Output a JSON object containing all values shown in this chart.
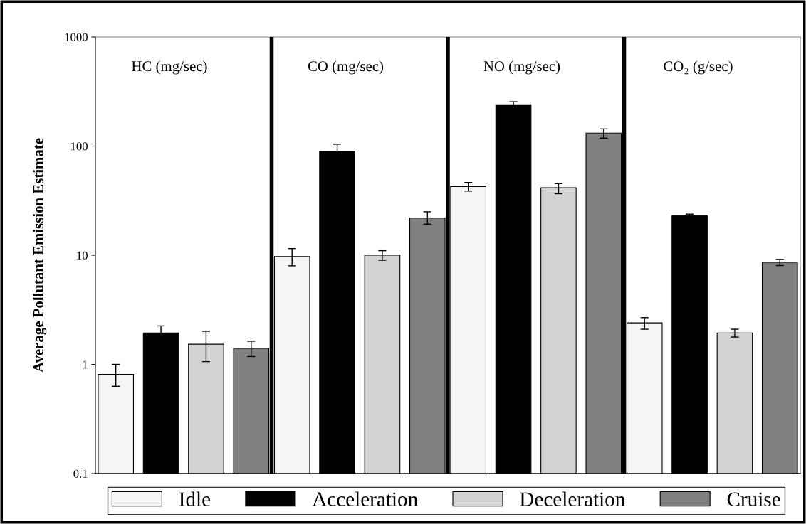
{
  "chart_data": {
    "type": "bar",
    "ylabel": "Average Pollutant Emission Estimate",
    "categories": [
      "HC (mg/sec)",
      "CO (mg/sec)",
      "NO (mg/sec)",
      "CO₂ (g/sec)"
    ],
    "series": [
      {
        "name": "Idle",
        "color": "#f5f5f5",
        "values": [
          0.81,
          9.75,
          42.5,
          2.4
        ],
        "errors": [
          [
            0.63,
            1.0
          ],
          [
            8.0,
            11.5
          ],
          [
            38.7,
            46.4
          ],
          [
            2.1,
            2.68
          ]
        ]
      },
      {
        "name": "Acceleration",
        "color": "#000000",
        "values": [
          1.94,
          90,
          239,
          23.1
        ],
        "errors": [
          0.31,
          14,
          16,
          0.7
        ]
      },
      {
        "name": "Deceleration",
        "color": "#d3d3d3",
        "values": [
          1.53,
          10.0,
          41.5,
          1.94
        ],
        "errors": [
          [
            1.06,
            2.01
          ],
          [
            9.0,
            11.0
          ],
          [
            36.6,
            45.3
          ],
          [
            1.78,
            2.1
          ]
        ]
      },
      {
        "name": "Cruise",
        "color": "#808080",
        "values": [
          1.4,
          21.9,
          131.6,
          8.61
        ],
        "errors": [
          [
            1.18,
            1.63
          ],
          [
            19.3,
            25.0
          ],
          [
            118.3,
            143.6
          ],
          [
            8.04,
            9.16
          ]
        ]
      }
    ],
    "log": true,
    "ylim": [
      0.1,
      1000
    ],
    "yticks": [
      0.1,
      1,
      10,
      100,
      1000
    ],
    "tick_labels": "y",
    "grid": false,
    "legend": "bottom"
  }
}
